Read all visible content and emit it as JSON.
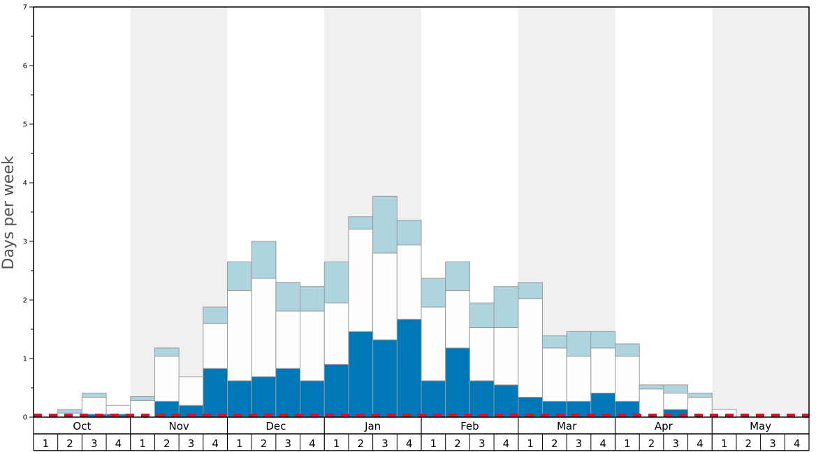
{
  "chart_data": {
    "type": "bar",
    "ylabel": "Days per week",
    "ylim": [
      0,
      7
    ],
    "yticks": [
      "0",
      "1",
      "2",
      "3",
      "4",
      "5",
      "6",
      "7"
    ],
    "months": [
      "Oct",
      "Nov",
      "Dec",
      "Jan",
      "Feb",
      "Mar",
      "Apr",
      "May"
    ],
    "weeks": [
      "1",
      "2",
      "3",
      "4"
    ],
    "stacked": true,
    "series": [
      {
        "color": "#0077b6",
        "values": [
          0.0,
          0.0,
          0.05,
          0.05,
          0.0,
          0.27,
          0.2,
          0.83,
          0.62,
          0.69,
          0.83,
          0.62,
          0.9,
          1.46,
          1.32,
          1.67,
          0.62,
          1.18,
          0.62,
          0.55,
          0.34,
          0.27,
          0.27,
          0.41,
          0.27,
          0.0,
          0.13,
          0.0,
          0.0,
          0.0,
          0.0,
          0.0
        ]
      },
      {
        "color": "#fefefe",
        "values": [
          0.0,
          0.07,
          0.29,
          0.15,
          0.28,
          0.77,
          0.49,
          0.77,
          1.54,
          1.68,
          0.98,
          1.19,
          1.05,
          1.75,
          1.48,
          1.27,
          1.26,
          0.98,
          0.91,
          0.98,
          1.68,
          0.91,
          0.77,
          0.77,
          0.77,
          0.48,
          0.28,
          0.34,
          0.13,
          0.0,
          0.0,
          0.0
        ]
      },
      {
        "color": "#aed4e0",
        "values": [
          0.0,
          0.06,
          0.07,
          0.0,
          0.07,
          0.14,
          0.0,
          0.28,
          0.49,
          0.63,
          0.49,
          0.42,
          0.7,
          0.21,
          0.97,
          0.42,
          0.49,
          0.49,
          0.42,
          0.7,
          0.28,
          0.21,
          0.42,
          0.28,
          0.21,
          0.07,
          0.14,
          0.07,
          0.0,
          0.0,
          0.0,
          0.0
        ]
      }
    ],
    "reference_line": {
      "value": 0.03,
      "color": "#d0142c",
      "style": "dashed"
    },
    "shaded_months": [
      "Nov",
      "Jan",
      "Mar",
      "May"
    ],
    "grid": false
  }
}
